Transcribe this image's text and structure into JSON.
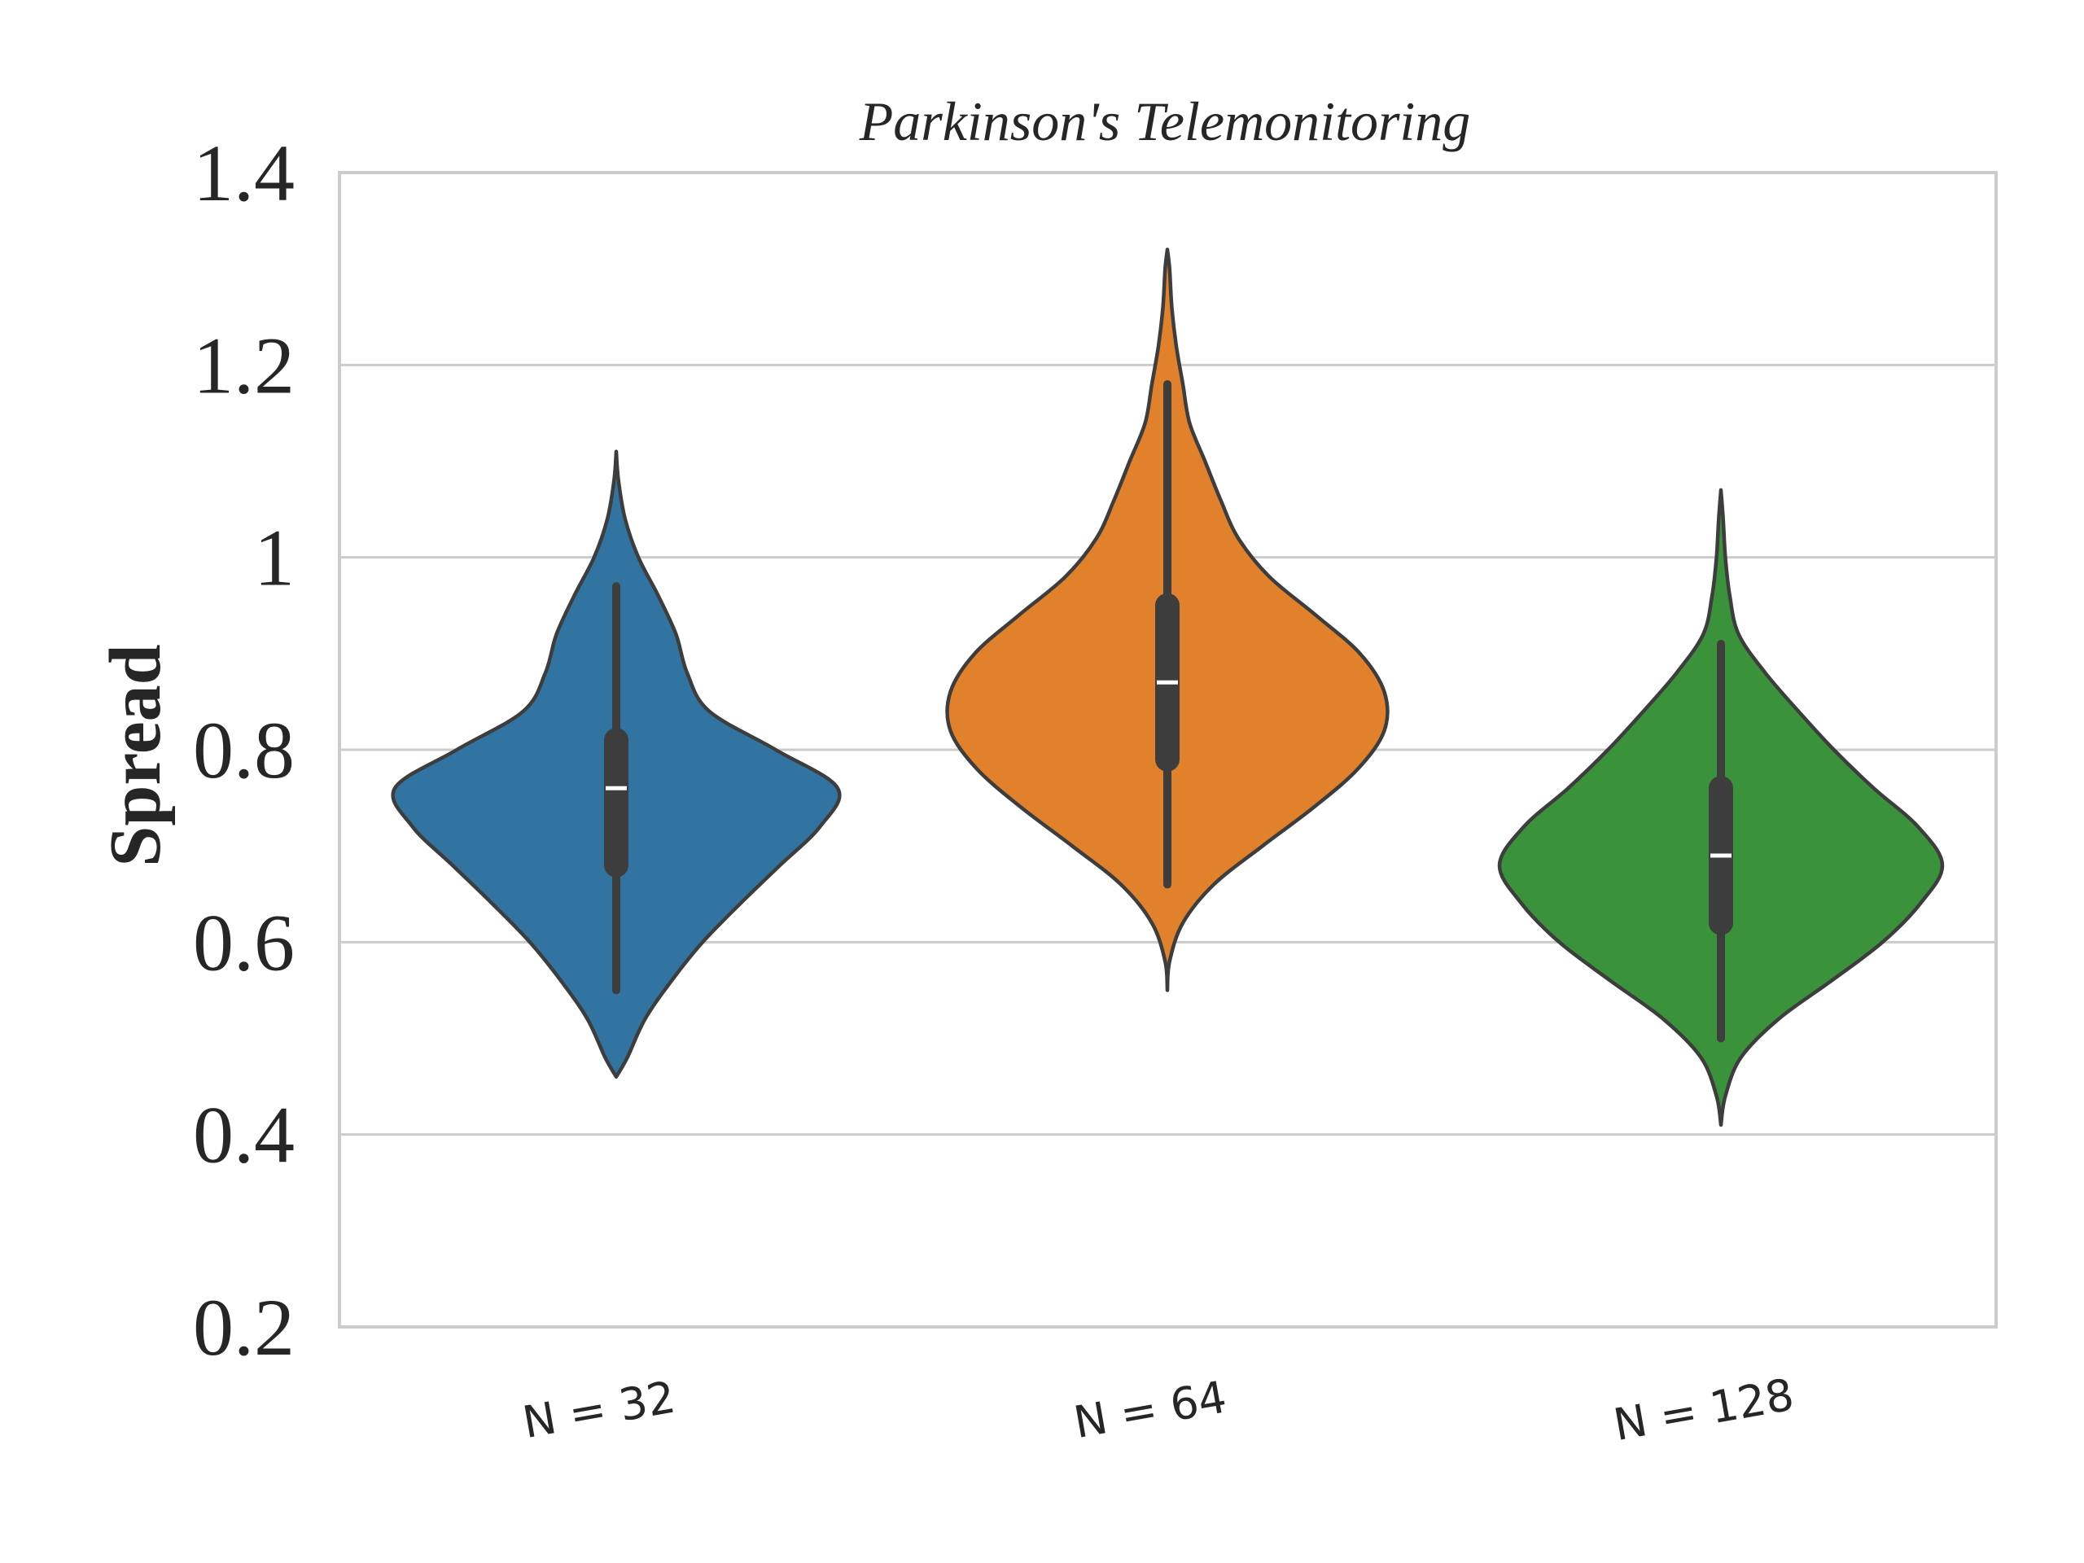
{
  "chart_data": {
    "type": "violin",
    "title": "Parkinson's Telemonitoring",
    "xlabel": "",
    "ylabel": "Spread",
    "ylim": [
      0.2,
      1.4
    ],
    "yticks": [
      "0.2",
      "0.4",
      "0.6",
      "0.8",
      "1",
      "1.2",
      "1.4"
    ],
    "grid": "horizontal",
    "categories": [
      "N = 32",
      "N = 64",
      "N = 128"
    ],
    "colors": [
      "#3274a1",
      "#e1812c",
      "#3a923a"
    ],
    "series": [
      {
        "category": "N = 32",
        "min": 0.46,
        "max": 1.11,
        "whisker_low": 0.55,
        "whisker_high": 0.97,
        "q1": 0.68,
        "median": 0.76,
        "q3": 0.81,
        "density": [
          [
            0.46,
            0.0
          ],
          [
            0.48,
            0.05
          ],
          [
            0.52,
            0.13
          ],
          [
            0.56,
            0.25
          ],
          [
            0.6,
            0.39
          ],
          [
            0.64,
            0.56
          ],
          [
            0.68,
            0.74
          ],
          [
            0.72,
            0.92
          ],
          [
            0.76,
            1.0
          ],
          [
            0.8,
            0.72
          ],
          [
            0.84,
            0.42
          ],
          [
            0.88,
            0.32
          ],
          [
            0.92,
            0.27
          ],
          [
            0.96,
            0.19
          ],
          [
            1.0,
            0.1
          ],
          [
            1.04,
            0.04
          ],
          [
            1.08,
            0.01
          ],
          [
            1.11,
            0.0
          ]
        ]
      },
      {
        "category": "N = 64",
        "min": 0.55,
        "max": 1.32,
        "whisker_low": 0.66,
        "whisker_high": 1.18,
        "q1": 0.79,
        "median": 0.87,
        "q3": 0.95,
        "density": [
          [
            0.55,
            0.0
          ],
          [
            0.58,
            0.01
          ],
          [
            0.62,
            0.07
          ],
          [
            0.66,
            0.21
          ],
          [
            0.7,
            0.43
          ],
          [
            0.74,
            0.66
          ],
          [
            0.78,
            0.86
          ],
          [
            0.82,
            0.98
          ],
          [
            0.86,
            0.98
          ],
          [
            0.9,
            0.87
          ],
          [
            0.94,
            0.67
          ],
          [
            0.98,
            0.46
          ],
          [
            1.02,
            0.32
          ],
          [
            1.06,
            0.24
          ],
          [
            1.1,
            0.17
          ],
          [
            1.14,
            0.1
          ],
          [
            1.18,
            0.07
          ],
          [
            1.22,
            0.04
          ],
          [
            1.26,
            0.02
          ],
          [
            1.3,
            0.01
          ],
          [
            1.32,
            0.0
          ]
        ]
      },
      {
        "category": "N = 128",
        "min": 0.41,
        "max": 1.07,
        "whisker_low": 0.5,
        "whisker_high": 0.91,
        "q1": 0.62,
        "median": 0.69,
        "q3": 0.76,
        "density": [
          [
            0.41,
            0.0
          ],
          [
            0.44,
            0.02
          ],
          [
            0.48,
            0.09
          ],
          [
            0.52,
            0.26
          ],
          [
            0.56,
            0.5
          ],
          [
            0.6,
            0.73
          ],
          [
            0.64,
            0.9
          ],
          [
            0.68,
            1.0
          ],
          [
            0.72,
            0.89
          ],
          [
            0.76,
            0.69
          ],
          [
            0.8,
            0.51
          ],
          [
            0.84,
            0.35
          ],
          [
            0.88,
            0.2
          ],
          [
            0.92,
            0.08
          ],
          [
            0.96,
            0.04
          ],
          [
            1.0,
            0.02
          ],
          [
            1.04,
            0.01
          ],
          [
            1.07,
            0.0
          ]
        ]
      }
    ]
  }
}
